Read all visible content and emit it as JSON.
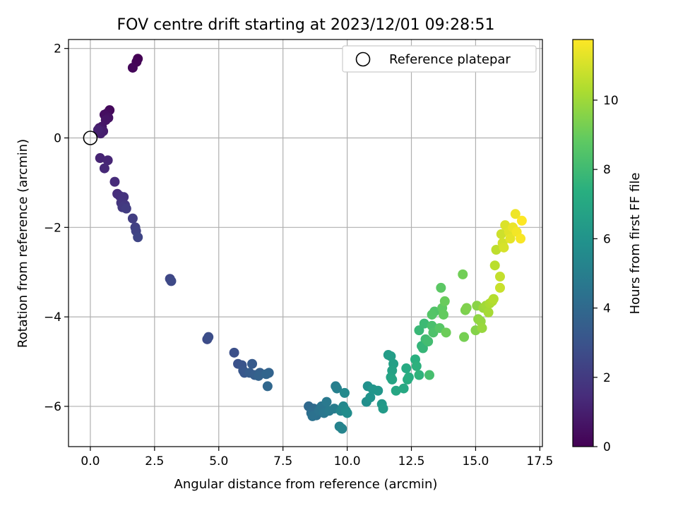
{
  "chart_data": {
    "type": "scatter",
    "title": "FOV centre drift starting at 2023/12/01 09:28:51",
    "xlabel": "Angular distance from reference (arcmin)",
    "ylabel": "Rotation from reference (arcmin)",
    "xlim": [
      -0.85,
      17.6
    ],
    "ylim": [
      -6.9,
      2.2
    ],
    "xticks": [
      0.0,
      2.5,
      5.0,
      7.5,
      10.0,
      12.5,
      15.0,
      17.5
    ],
    "xtick_labels": [
      "0.0",
      "2.5",
      "5.0",
      "7.5",
      "10.0",
      "12.5",
      "15.0",
      "17.5"
    ],
    "yticks": [
      -6,
      -4,
      -2,
      0,
      2
    ],
    "ytick_labels": [
      "−6",
      "−4",
      "−2",
      "0",
      "2"
    ],
    "grid": true,
    "legend": {
      "position": "top-right",
      "entries": [
        "Reference platepar"
      ]
    },
    "reference_point": {
      "x": 0.0,
      "y": 0.0
    },
    "colorbar": {
      "label": "Hours from first FF file",
      "colormap": "viridis",
      "range": [
        0,
        11.75
      ],
      "ticks": [
        0,
        2,
        4,
        6,
        8,
        10
      ],
      "tick_labels": [
        "0",
        "2",
        "4",
        "6",
        "8",
        "10"
      ]
    },
    "series": [
      {
        "points": [
          [
            1.85,
            1.77
          ],
          [
            1.8,
            1.7
          ],
          [
            1.65,
            1.57
          ],
          [
            0.75,
            0.62
          ],
          [
            0.65,
            0.55
          ],
          [
            0.55,
            0.52
          ],
          [
            0.7,
            0.45
          ],
          [
            0.6,
            0.4
          ],
          [
            0.45,
            0.25
          ],
          [
            0.35,
            0.22
          ],
          [
            0.5,
            0.15
          ],
          [
            0.4,
            0.1
          ],
          [
            0.3,
            0.18
          ],
          [
            0.38,
            -0.45
          ],
          [
            0.68,
            -0.5
          ],
          [
            0.55,
            -0.68
          ],
          [
            0.95,
            -0.98
          ],
          [
            1.05,
            -1.25
          ],
          [
            1.15,
            -1.3
          ],
          [
            1.3,
            -1.32
          ],
          [
            1.2,
            -1.45
          ],
          [
            1.35,
            -1.5
          ],
          [
            1.25,
            -1.55
          ],
          [
            1.4,
            -1.58
          ],
          [
            1.65,
            -1.8
          ],
          [
            1.75,
            -2.0
          ],
          [
            1.78,
            -2.08
          ],
          [
            1.85,
            -2.22
          ],
          [
            3.1,
            -3.15
          ],
          [
            3.15,
            -3.2
          ],
          [
            4.55,
            -4.5
          ],
          [
            4.6,
            -4.45
          ],
          [
            5.6,
            -4.8
          ],
          [
            5.75,
            -5.05
          ],
          [
            5.9,
            -5.08
          ],
          [
            5.95,
            -5.2
          ],
          [
            6.0,
            -5.25
          ],
          [
            6.3,
            -5.05
          ],
          [
            6.2,
            -5.25
          ],
          [
            6.4,
            -5.3
          ],
          [
            6.6,
            -5.25
          ],
          [
            6.55,
            -5.32
          ],
          [
            6.95,
            -5.25
          ],
          [
            6.85,
            -5.28
          ],
          [
            6.9,
            -5.55
          ],
          [
            8.5,
            -6.0
          ],
          [
            8.7,
            -6.05
          ],
          [
            8.6,
            -6.15
          ],
          [
            8.8,
            -6.2
          ],
          [
            8.65,
            -6.22
          ],
          [
            8.9,
            -6.1
          ],
          [
            9.0,
            -6.0
          ],
          [
            9.1,
            -6.15
          ],
          [
            9.2,
            -5.9
          ],
          [
            9.3,
            -6.1
          ],
          [
            9.5,
            -6.05
          ],
          [
            9.55,
            -5.55
          ],
          [
            9.6,
            -5.6
          ],
          [
            9.7,
            -6.45
          ],
          [
            9.8,
            -6.5
          ],
          [
            9.75,
            -6.1
          ],
          [
            9.85,
            -6.0
          ],
          [
            9.9,
            -5.7
          ],
          [
            9.95,
            -6.1
          ],
          [
            10.0,
            -6.15
          ],
          [
            10.75,
            -5.9
          ],
          [
            10.8,
            -5.55
          ],
          [
            10.9,
            -5.8
          ],
          [
            11.0,
            -5.62
          ],
          [
            11.2,
            -5.65
          ],
          [
            11.35,
            -5.95
          ],
          [
            11.4,
            -6.05
          ],
          [
            11.6,
            -4.85
          ],
          [
            11.7,
            -4.88
          ],
          [
            11.8,
            -5.05
          ],
          [
            11.75,
            -5.2
          ],
          [
            11.7,
            -5.35
          ],
          [
            11.75,
            -5.4
          ],
          [
            11.9,
            -5.65
          ],
          [
            12.2,
            -5.6
          ],
          [
            12.3,
            -5.15
          ],
          [
            12.35,
            -5.4
          ],
          [
            12.4,
            -5.35
          ],
          [
            12.65,
            -4.95
          ],
          [
            12.7,
            -5.1
          ],
          [
            12.8,
            -5.3
          ],
          [
            12.9,
            -4.65
          ],
          [
            12.95,
            -4.7
          ],
          [
            12.8,
            -4.3
          ],
          [
            13.0,
            -4.15
          ],
          [
            13.05,
            -4.5
          ],
          [
            13.15,
            -4.55
          ],
          [
            13.2,
            -5.3
          ],
          [
            13.3,
            -4.2
          ],
          [
            13.35,
            -4.35
          ],
          [
            13.4,
            -3.88
          ],
          [
            13.3,
            -3.95
          ],
          [
            13.6,
            -4.25
          ],
          [
            13.65,
            -3.35
          ],
          [
            13.7,
            -3.8
          ],
          [
            13.75,
            -3.95
          ],
          [
            13.8,
            -3.65
          ],
          [
            13.85,
            -4.35
          ],
          [
            14.5,
            -3.05
          ],
          [
            14.55,
            -4.45
          ],
          [
            14.6,
            -3.85
          ],
          [
            14.65,
            -3.8
          ],
          [
            15.0,
            -4.3
          ],
          [
            15.05,
            -3.75
          ],
          [
            15.1,
            -4.05
          ],
          [
            15.2,
            -4.1
          ],
          [
            15.25,
            -4.25
          ],
          [
            15.3,
            -3.8
          ],
          [
            15.4,
            -3.75
          ],
          [
            15.5,
            -3.9
          ],
          [
            15.55,
            -3.7
          ],
          [
            15.65,
            -3.65
          ],
          [
            15.7,
            -3.6
          ],
          [
            15.75,
            -2.85
          ],
          [
            15.8,
            -2.5
          ],
          [
            15.95,
            -3.1
          ],
          [
            15.95,
            -3.35
          ],
          [
            16.0,
            -2.15
          ],
          [
            16.05,
            -2.35
          ],
          [
            16.1,
            -2.45
          ],
          [
            16.15,
            -1.95
          ],
          [
            16.3,
            -2.1
          ],
          [
            16.35,
            -2.25
          ],
          [
            16.45,
            -2.0
          ],
          [
            16.55,
            -1.7
          ],
          [
            16.6,
            -2.1
          ],
          [
            16.75,
            -2.25
          ],
          [
            16.8,
            -1.85
          ]
        ]
      }
    ]
  }
}
